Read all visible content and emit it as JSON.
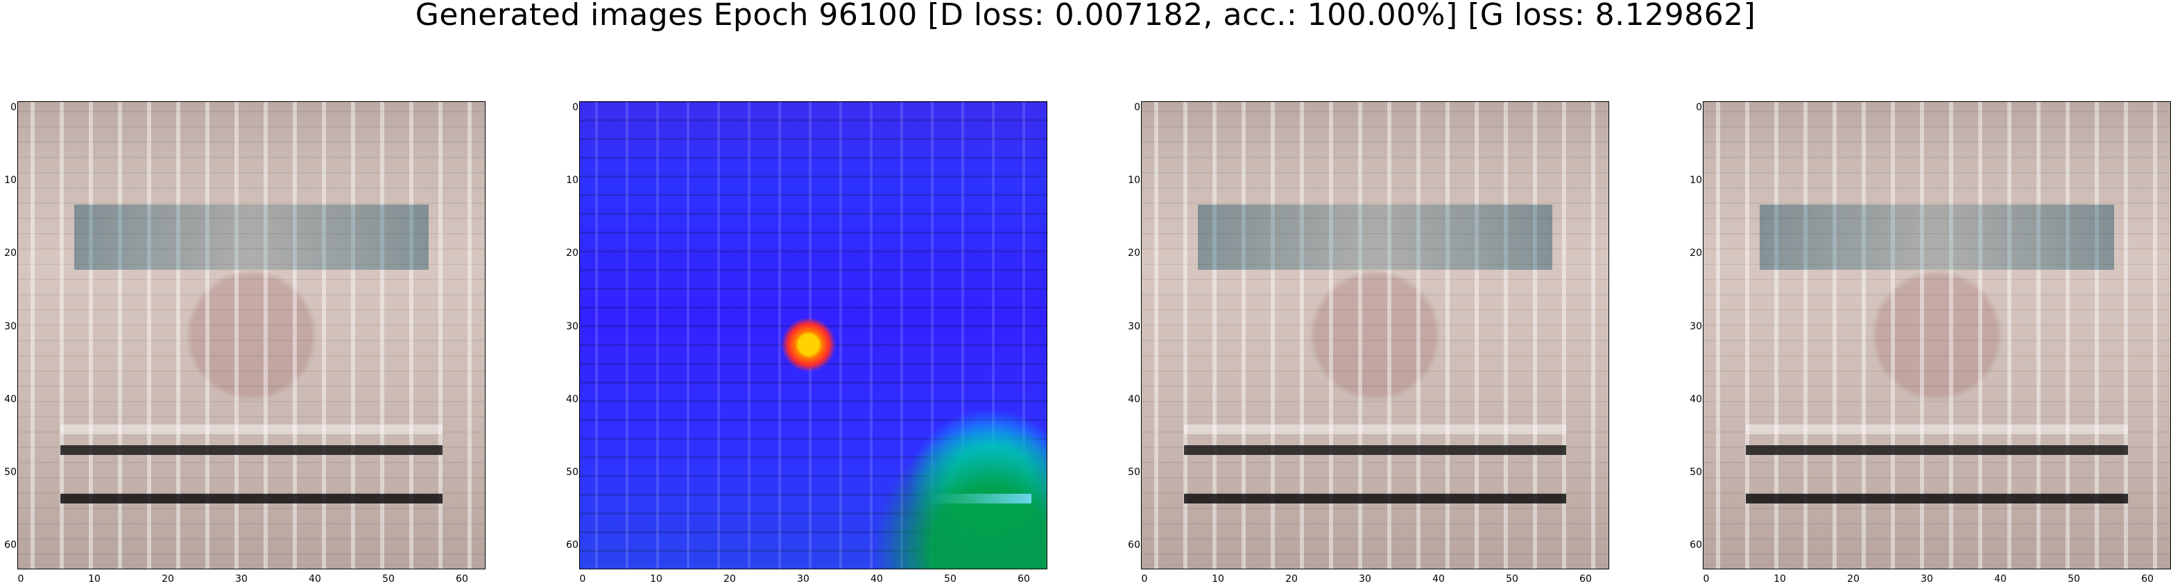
{
  "figure": {
    "title": "Generated images Epoch 96100 [D loss: 0.007182, acc.: 100.00%] [G loss: 8.129862]"
  },
  "axes": {
    "x_ticks": [
      "0",
      "10",
      "20",
      "30",
      "40",
      "50",
      "60"
    ],
    "y_ticks": [
      "0",
      "10",
      "20",
      "30",
      "40",
      "50",
      "60"
    ]
  },
  "panels": [
    {
      "name": "generated-image-1",
      "palette": "gray-pink"
    },
    {
      "name": "generated-image-2",
      "palette": "blue"
    },
    {
      "name": "generated-image-3",
      "palette": "gray-pink"
    },
    {
      "name": "generated-image-4",
      "palette": "gray-pink"
    }
  ]
}
